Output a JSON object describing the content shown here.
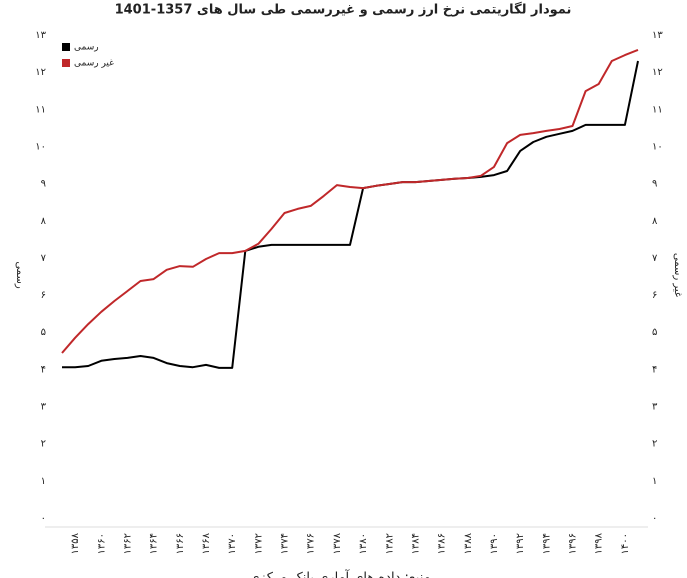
{
  "chart_data": {
    "type": "line",
    "title": "نمودار لگاریتمی نرخ ارز رسمی و غیررسمی طی سال های 1357-1401",
    "y_label": "رسمی",
    "y2_label": "غیر رسمی",
    "source": "منبع: داده های آماری بانک مرکزی",
    "categories": [
      null,
      "۱۳۵۸",
      null,
      "۱۳۶۰",
      null,
      "۱۳۶۲",
      null,
      "۱۳۶۴",
      null,
      "۱۳۶۶",
      null,
      "۱۳۶۸",
      null,
      "۱۳۷۰",
      null,
      "۱۳۷۲",
      null,
      "۱۳۷۴",
      null,
      "۱۳۷۶",
      null,
      "۱۳۷۸",
      null,
      "۱۳۸۰",
      null,
      "۱۳۸۲",
      null,
      "۱۳۸۴",
      null,
      "۱۳۸۶",
      null,
      "۱۳۸۸",
      null,
      "۱۳۹۰",
      null,
      "۱۳۹۲",
      null,
      "۱۳۹۴",
      null,
      "۱۳۹۶",
      null,
      "۱۳۹۸",
      null,
      "۱۴۰۰",
      null
    ],
    "series": [
      {
        "name": "رسمی",
        "color": "#000000",
        "values": [
          4.06,
          4.06,
          4.09,
          4.23,
          4.28,
          4.31,
          4.36,
          4.31,
          4.17,
          4.09,
          4.06,
          4.12,
          4.04,
          4.04,
          7.19,
          7.3,
          7.35,
          7.35,
          7.35,
          7.35,
          7.35,
          7.35,
          7.35,
          8.88,
          8.94,
          8.99,
          9.04,
          9.04,
          9.07,
          9.1,
          9.13,
          9.15,
          9.18,
          9.23,
          9.34,
          9.88,
          10.12,
          10.26,
          10.34,
          10.42,
          10.58,
          10.58,
          10.58,
          10.58,
          12.3
        ]
      },
      {
        "name": "غیر رسمی",
        "color": "#c0282a",
        "axis": "y2",
        "values": [
          4.44,
          4.85,
          5.22,
          5.55,
          5.84,
          6.11,
          6.38,
          6.43,
          6.68,
          6.78,
          6.76,
          6.97,
          7.13,
          7.13,
          7.19,
          7.38,
          7.78,
          8.21,
          8.32,
          8.4,
          8.67,
          8.96,
          8.91,
          8.88,
          8.94,
          8.99,
          9.04,
          9.04,
          9.07,
          9.1,
          9.13,
          9.15,
          9.21,
          9.45,
          10.09,
          10.31,
          10.36,
          10.42,
          10.47,
          10.55,
          11.49,
          11.68,
          12.3,
          12.46,
          12.6
        ]
      }
    ],
    "ylim": [
      0,
      13
    ],
    "yticks": [
      {
        "value": 0,
        "label": "۰"
      },
      {
        "value": 1,
        "label": "۱"
      },
      {
        "value": 2,
        "label": "۲"
      },
      {
        "value": 3,
        "label": "۳"
      },
      {
        "value": 4,
        "label": "۴"
      },
      {
        "value": 5,
        "label": "۵"
      },
      {
        "value": 6,
        "label": "۶"
      },
      {
        "value": 7,
        "label": "۷"
      },
      {
        "value": 8,
        "label": "۸"
      },
      {
        "value": 9,
        "label": "۹"
      },
      {
        "value": 10,
        "label": "۱۰"
      },
      {
        "value": 11,
        "label": "۱۱"
      },
      {
        "value": 12,
        "label": "۱۲"
      },
      {
        "value": 13,
        "label": "۱۳"
      }
    ],
    "y2lim": [
      0,
      13
    ],
    "y2ticks": [
      {
        "value": 0,
        "label": "۰"
      },
      {
        "value": 1,
        "label": "۱"
      },
      {
        "value": 2,
        "label": "۲"
      },
      {
        "value": 3,
        "label": "۳"
      },
      {
        "value": 4,
        "label": "۴"
      },
      {
        "value": 5,
        "label": "۵"
      },
      {
        "value": 6,
        "label": "۶"
      },
      {
        "value": 7,
        "label": "۷"
      },
      {
        "value": 8,
        "label": "۸"
      },
      {
        "value": 9,
        "label": "۹"
      },
      {
        "value": 10,
        "label": "۱۰"
      },
      {
        "value": 11,
        "label": "۱۱"
      },
      {
        "value": 12,
        "label": "۱۲"
      },
      {
        "value": 13,
        "label": "۱۳"
      }
    ],
    "legend": "top-left",
    "grid": false
  }
}
